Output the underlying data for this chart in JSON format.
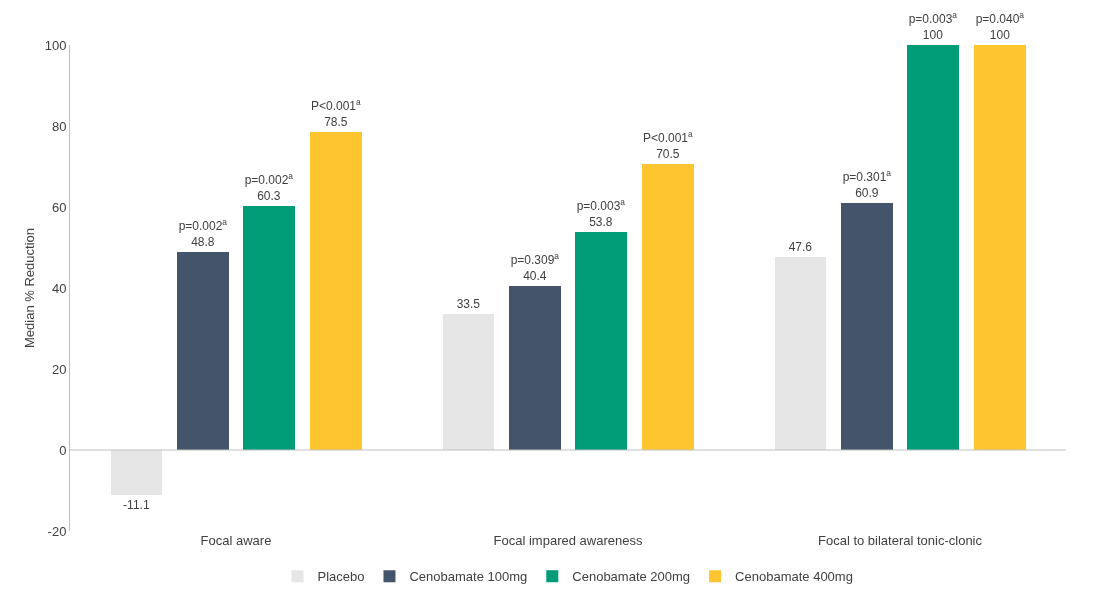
{
  "chart_data": {
    "type": "bar",
    "ylabel": "Median % Reduction",
    "categories": [
      "Focal aware",
      "Focal impared awareness",
      "Focal to bilateral tonic-clonic"
    ],
    "series": [
      {
        "name": "Placebo",
        "color": "#e6e6e6",
        "values": [
          -11.1,
          33.5,
          47.6
        ],
        "value_labels": [
          "-11.1",
          "33.5",
          "47.6"
        ]
      },
      {
        "name": "Cenobamate 100mg",
        "color": "#44546a",
        "values": [
          48.8,
          40.4,
          60.9
        ],
        "value_labels": [
          "p=0.002$^{a}$\n48.8",
          "p=0.309$^{a}$\n40.4",
          "p=0.301$^{a}$\n60.9"
        ]
      },
      {
        "name": "Cenobamate 200mg",
        "color": "#009b77",
        "values": [
          60.3,
          53.8,
          100
        ],
        "value_labels": [
          "p=0.002$^{a}$\n60.3",
          "p=0.003$^{a}$\n53.8",
          "p=0.003$^{a}$\n100"
        ]
      },
      {
        "name": "Cenobamate 400mg",
        "color": "#fdc530",
        "values": [
          78.5,
          70.5,
          100
        ],
        "value_labels": [
          "P<0.001$^{a}$\n78.5",
          "P<0.001$^{a}$\n70.5",
          "p=0.040$^{a}$\n100"
        ]
      }
    ],
    "ref_lines": [
      {
        "axis": "y",
        "value": 0,
        "color": "#bfbfbf"
      }
    ],
    "ylim": [
      -20,
      100
    ],
    "yticks": [
      -20,
      0,
      20,
      40,
      60,
      80,
      100
    ],
    "grid": false,
    "legend": "bottom"
  }
}
